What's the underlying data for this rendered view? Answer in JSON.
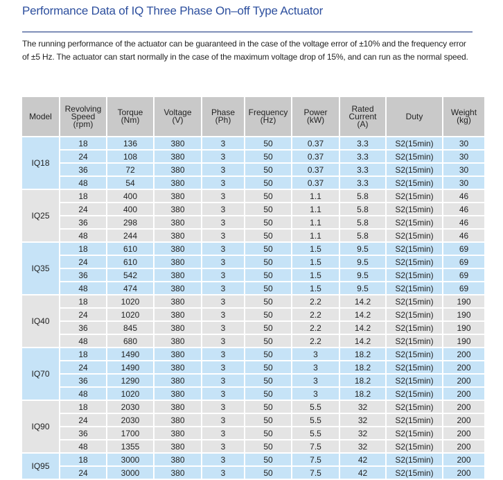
{
  "title": "Performance Data of IQ Three Phase On–off Type Actuator",
  "description": "The running performance of the actuator can be guaranteed in the case of the voltage error of ±10% and the frequency error of ±5 Hz. The actuator can start normally in the case of the maximum voltage drop of 15%, and can run as the normal speed.",
  "colors": {
    "title": "#2d4f9e",
    "header": "#c9c9c9",
    "band_blue": "#c6e3f7",
    "band_gray": "#e4e4e4"
  },
  "table": {
    "headers": [
      [
        "Revolving",
        "Speed",
        "(rpm)"
      ],
      [
        "Torque",
        "(Nm)"
      ],
      [
        "Voltage",
        "(V)"
      ],
      [
        "Phase",
        "(Ph)"
      ],
      [
        "Frequency",
        "(Hz)"
      ],
      [
        "Power",
        "(kW)"
      ],
      [
        "Rated",
        "Current",
        "(A)"
      ],
      [
        "Duty"
      ],
      [
        "Weight",
        "(kg)"
      ]
    ],
    "model_header": "Model",
    "groups": [
      {
        "model": "IQ18",
        "rows": [
          [
            "18",
            "136",
            "380",
            "3",
            "50",
            "0.37",
            "3.3",
            "S2(15min)",
            "30"
          ],
          [
            "24",
            "108",
            "380",
            "3",
            "50",
            "0.37",
            "3.3",
            "S2(15min)",
            "30"
          ],
          [
            "36",
            "72",
            "380",
            "3",
            "50",
            "0.37",
            "3.3",
            "S2(15min)",
            "30"
          ],
          [
            "48",
            "54",
            "380",
            "3",
            "50",
            "0.37",
            "3.3",
            "S2(15min)",
            "30"
          ]
        ]
      },
      {
        "model": "IQ25",
        "rows": [
          [
            "18",
            "400",
            "380",
            "3",
            "50",
            "1.1",
            "5.8",
            "S2(15min)",
            "46"
          ],
          [
            "24",
            "400",
            "380",
            "3",
            "50",
            "1.1",
            "5.8",
            "S2(15min)",
            "46"
          ],
          [
            "36",
            "298",
            "380",
            "3",
            "50",
            "1.1",
            "5.8",
            "S2(15min)",
            "46"
          ],
          [
            "48",
            "244",
            "380",
            "3",
            "50",
            "1.1",
            "5.8",
            "S2(15min)",
            "46"
          ]
        ]
      },
      {
        "model": "IQ35",
        "rows": [
          [
            "18",
            "610",
            "380",
            "3",
            "50",
            "1.5",
            "9.5",
            "S2(15min)",
            "69"
          ],
          [
            "24",
            "610",
            "380",
            "3",
            "50",
            "1.5",
            "9.5",
            "S2(15min)",
            "69"
          ],
          [
            "36",
            "542",
            "380",
            "3",
            "50",
            "1.5",
            "9.5",
            "S2(15min)",
            "69"
          ],
          [
            "48",
            "474",
            "380",
            "3",
            "50",
            "1.5",
            "9.5",
            "S2(15min)",
            "69"
          ]
        ]
      },
      {
        "model": "IQ40",
        "rows": [
          [
            "18",
            "1020",
            "380",
            "3",
            "50",
            "2.2",
            "14.2",
            "S2(15min)",
            "190"
          ],
          [
            "24",
            "1020",
            "380",
            "3",
            "50",
            "2.2",
            "14.2",
            "S2(15min)",
            "190"
          ],
          [
            "36",
            "845",
            "380",
            "3",
            "50",
            "2.2",
            "14.2",
            "S2(15min)",
            "190"
          ],
          [
            "48",
            "680",
            "380",
            "3",
            "50",
            "2.2",
            "14.2",
            "S2(15min)",
            "190"
          ]
        ]
      },
      {
        "model": "IQ70",
        "rows": [
          [
            "18",
            "1490",
            "380",
            "3",
            "50",
            "3",
            "18.2",
            "S2(15min)",
            "200"
          ],
          [
            "24",
            "1490",
            "380",
            "3",
            "50",
            "3",
            "18.2",
            "S2(15min)",
            "200"
          ],
          [
            "36",
            "1290",
            "380",
            "3",
            "50",
            "3",
            "18.2",
            "S2(15min)",
            "200"
          ],
          [
            "48",
            "1020",
            "380",
            "3",
            "50",
            "3",
            "18.2",
            "S2(15min)",
            "200"
          ]
        ]
      },
      {
        "model": "IQ90",
        "rows": [
          [
            "18",
            "2030",
            "380",
            "3",
            "50",
            "5.5",
            "32",
            "S2(15min)",
            "200"
          ],
          [
            "24",
            "2030",
            "380",
            "3",
            "50",
            "5.5",
            "32",
            "S2(15min)",
            "200"
          ],
          [
            "36",
            "1700",
            "380",
            "3",
            "50",
            "5.5",
            "32",
            "S2(15min)",
            "200"
          ],
          [
            "48",
            "1355",
            "380",
            "3",
            "50",
            "7.5",
            "32",
            "S2(15min)",
            "200"
          ]
        ]
      },
      {
        "model": "IQ95",
        "rows": [
          [
            "18",
            "3000",
            "380",
            "3",
            "50",
            "7.5",
            "42",
            "S2(15min)",
            "200"
          ],
          [
            "24",
            "3000",
            "380",
            "3",
            "50",
            "7.5",
            "42",
            "S2(15min)",
            "200"
          ]
        ]
      }
    ]
  }
}
